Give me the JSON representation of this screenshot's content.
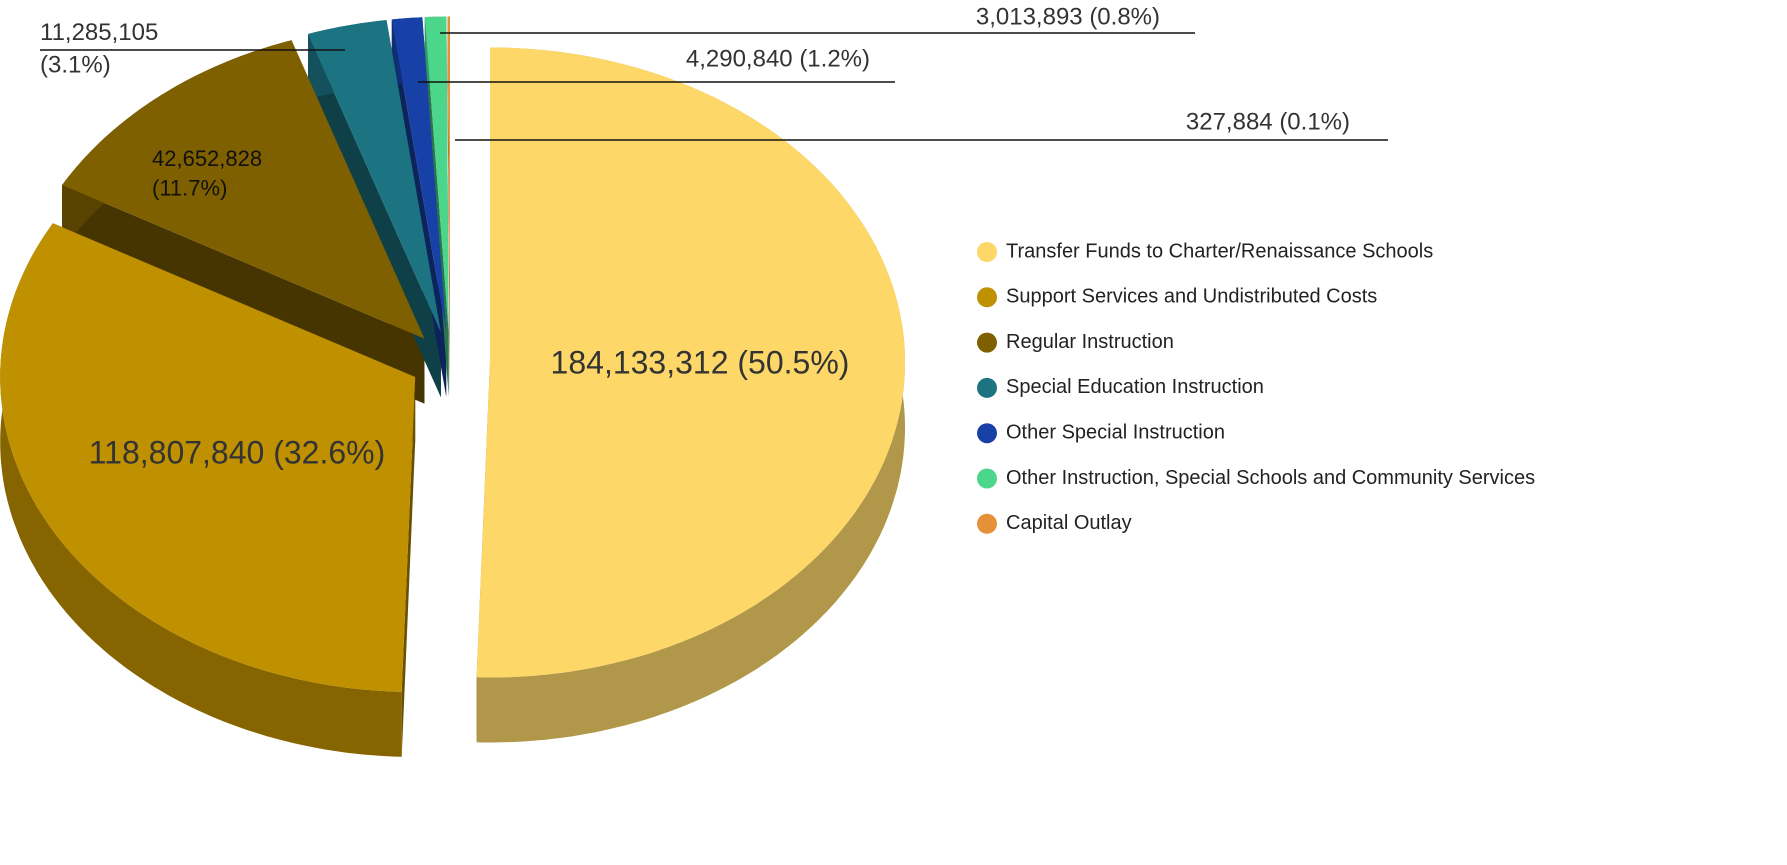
{
  "chart_data": {
    "type": "pie",
    "categories": [
      "Transfer Funds to Charter/Renaissance Schools",
      "Support Services and Undistributed Costs",
      "Regular Instruction",
      "Special Education Instruction",
      "Other Special Instruction",
      "Other Instruction, Special Schools and Community Services",
      "Capital Outlay"
    ],
    "values": [
      184133312,
      118807840,
      42652828,
      11285105,
      4290840,
      3013893,
      327884
    ],
    "value_labels": [
      "184,133,312 (50.5%)",
      "118,807,840 (32.6%)",
      "42,652,828 (11.7%)",
      "11,285,105 (3.1%)",
      "4,290,840 (1.2%)",
      "3,013,893 (0.8%)",
      "327,884 (0.1%)"
    ],
    "colors": [
      "#fdd868",
      "#bf9000",
      "#7f6000",
      "#1c7483",
      "#1741a6",
      "#4cd68b",
      "#e69138"
    ],
    "three_d": true,
    "exploded": true,
    "legend": "right"
  }
}
